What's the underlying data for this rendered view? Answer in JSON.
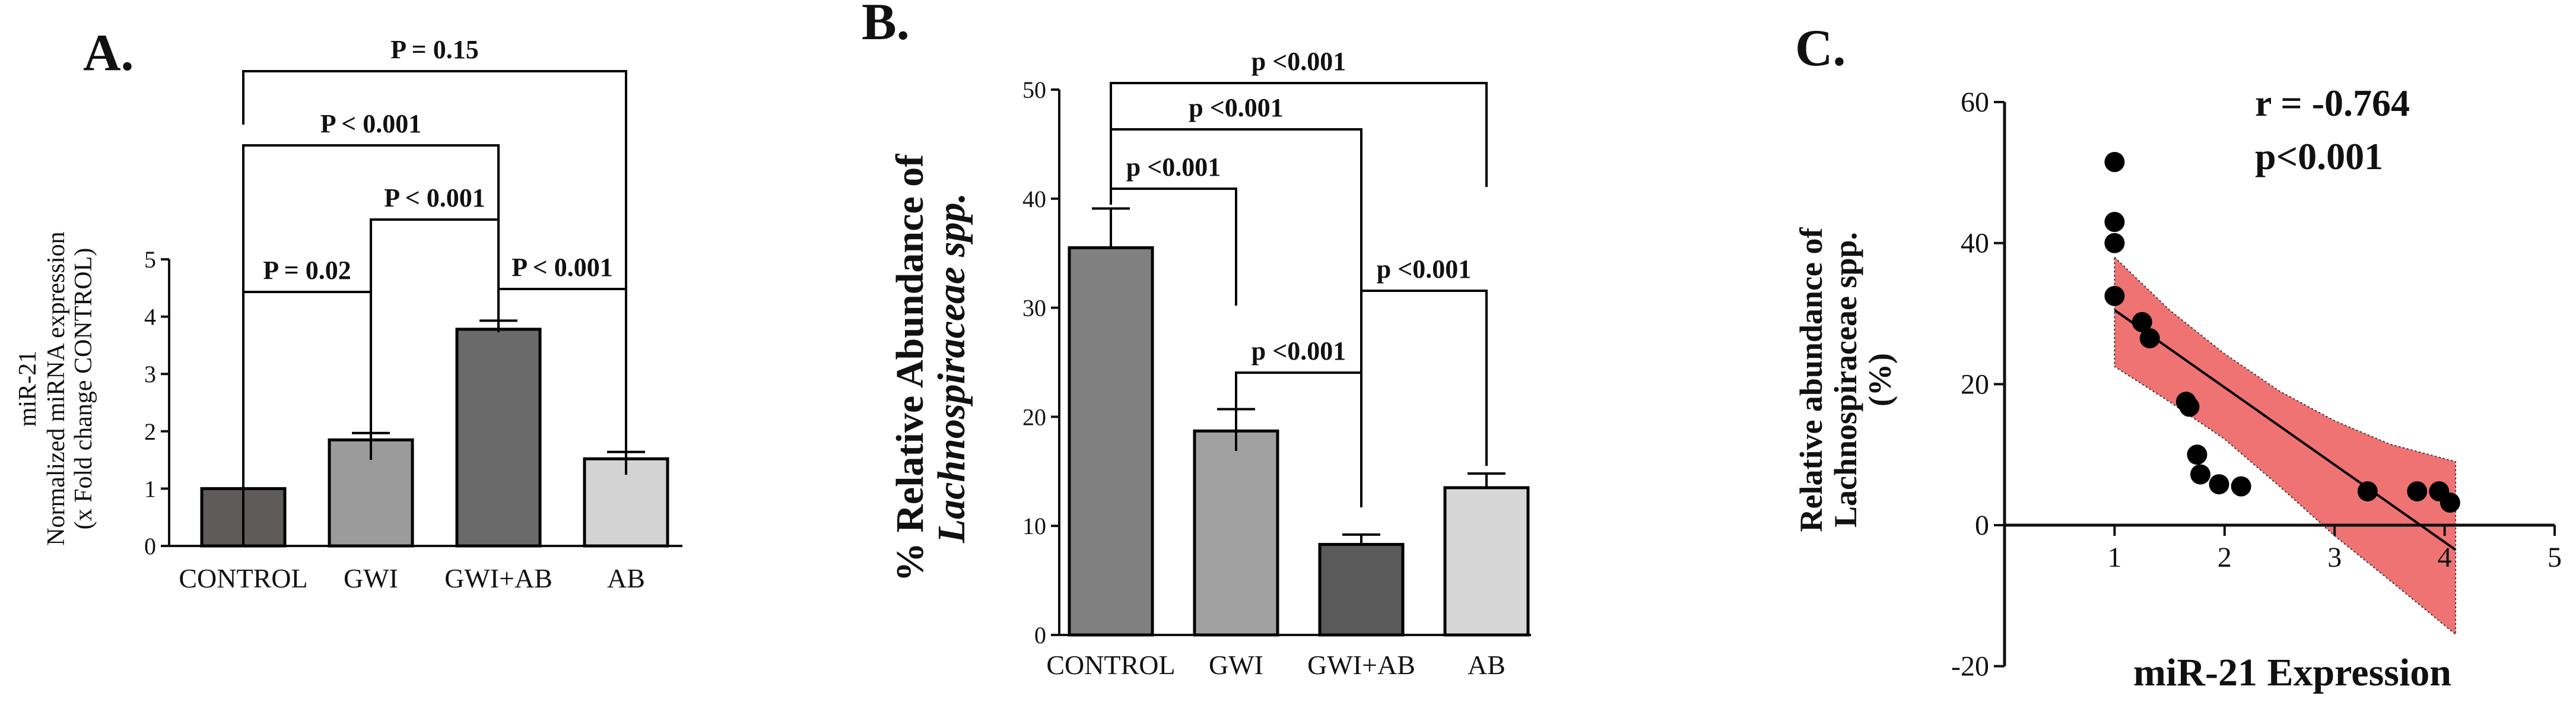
{
  "chart_data": [
    {
      "panel": "A.",
      "type": "bar",
      "categories": [
        "CONTROL",
        "GWI",
        "GWI+AB",
        "AB"
      ],
      "values": [
        1.0,
        1.85,
        3.78,
        1.52
      ],
      "errors": [
        0.0,
        0.12,
        0.15,
        0.12
      ],
      "bar_colors": [
        "#5f5b5b",
        "#9b9b9b",
        "#6a6a6a",
        "#d3d3d3"
      ],
      "ylabel": [
        "miR-21",
        "Normalized miRNA expression",
        "(x Fold change CONTROL)"
      ],
      "ylim": [
        0,
        5
      ],
      "yticks": [
        "0",
        "1",
        "2",
        "3",
        "4",
        "5"
      ],
      "comparisons": [
        {
          "from": 0,
          "to": 1,
          "label": "P = 0.02"
        },
        {
          "from": 2,
          "to": 3,
          "label": "P < 0.001"
        },
        {
          "from": 1,
          "to": 2,
          "label": "P < 0.001"
        },
        {
          "from": 0,
          "to": 2,
          "label": "P < 0.001"
        },
        {
          "from": 0,
          "to": 3,
          "label": "P = 0.15"
        }
      ]
    },
    {
      "panel": "B.",
      "type": "bar",
      "categories": [
        "CONTROL",
        "GWI",
        "GWI+AB",
        "AB"
      ],
      "values": [
        35.5,
        18.7,
        8.3,
        13.5
      ],
      "errors": [
        3.6,
        2.0,
        0.9,
        1.3
      ],
      "bar_colors": [
        "#808080",
        "#a1a1a1",
        "#5a5a5a",
        "#d6d6d6"
      ],
      "ylabel": [
        "% Relative Abundance of",
        "Lachnospiraceae spp."
      ],
      "ylim": [
        0,
        50
      ],
      "yticks": [
        "0",
        "10",
        "20",
        "30",
        "40",
        "50"
      ],
      "comparisons": [
        {
          "from": 2,
          "to": 3,
          "label": "p <0.001"
        },
        {
          "from": 1,
          "to": 2,
          "label": "p <0.001"
        },
        {
          "from": 0,
          "to": 1,
          "label": "p <0.001"
        },
        {
          "from": 0,
          "to": 2,
          "label": "p <0.001"
        },
        {
          "from": 0,
          "to": 3,
          "label": "p <0.001"
        }
      ]
    },
    {
      "panel": "C.",
      "type": "scatter",
      "points": [
        {
          "x": 1.0,
          "y": 51.5
        },
        {
          "x": 1.0,
          "y": 43.0
        },
        {
          "x": 1.0,
          "y": 40.0
        },
        {
          "x": 1.0,
          "y": 32.5
        },
        {
          "x": 1.25,
          "y": 28.8
        },
        {
          "x": 1.32,
          "y": 26.5
        },
        {
          "x": 1.65,
          "y": 17.5
        },
        {
          "x": 1.68,
          "y": 16.8
        },
        {
          "x": 1.75,
          "y": 10.0
        },
        {
          "x": 1.78,
          "y": 7.2
        },
        {
          "x": 1.95,
          "y": 5.8
        },
        {
          "x": 2.15,
          "y": 5.5
        },
        {
          "x": 3.3,
          "y": 4.8
        },
        {
          "x": 3.75,
          "y": 4.8
        },
        {
          "x": 3.95,
          "y": 4.8
        },
        {
          "x": 4.05,
          "y": 3.2
        }
      ],
      "fit_line": {
        "x": [
          1.0,
          4.1
        ],
        "y": [
          30.5,
          -3.5
        ]
      },
      "confidence_band": {
        "x": [
          1.0,
          1.5,
          2.0,
          2.5,
          3.0,
          3.5,
          4.1
        ],
        "upper": [
          38.0,
          30.5,
          24.3,
          19.0,
          14.8,
          11.5,
          9.0
        ],
        "lower": [
          22.5,
          17.5,
          12.2,
          5.5,
          -1.5,
          -7.8,
          -15.5
        ]
      },
      "band_color": "#ef7373",
      "xlabel": "miR-21 Expression",
      "ylabel": [
        "Relative abundance of",
        "Lachnospiraceae spp.",
        "(%)"
      ],
      "xlim": [
        0,
        5
      ],
      "ylim": [
        -20,
        60
      ],
      "xticks": [
        "1",
        "2",
        "3",
        "4",
        "5"
      ],
      "yticks": [
        "-20",
        "0",
        "20",
        "40",
        "60"
      ],
      "stats": [
        "r = -0.764",
        "p<0.001"
      ]
    }
  ]
}
